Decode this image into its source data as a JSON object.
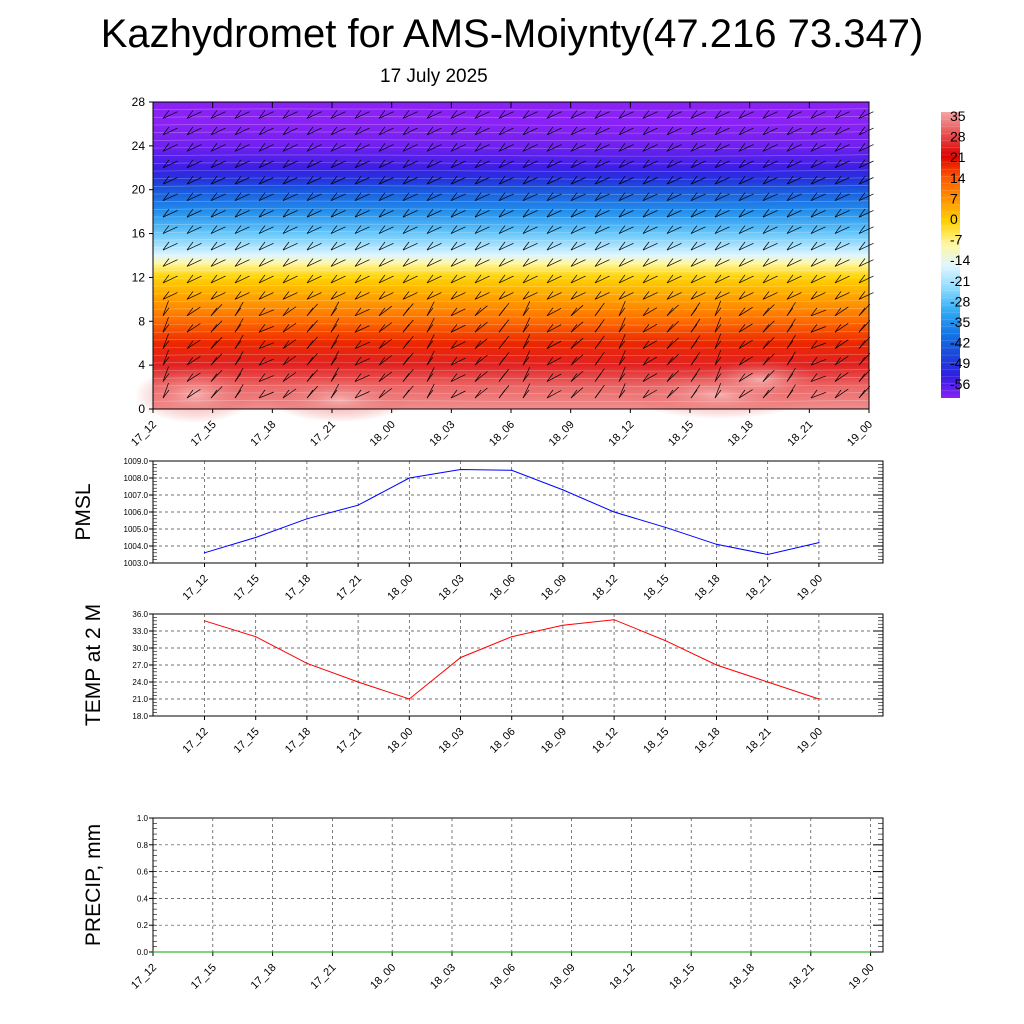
{
  "header": {
    "title": "Kazhydromet for AMS-Moiynty(47.216 73.347)",
    "date": "17 July 2025"
  },
  "chart_data": [
    {
      "type": "heatmap",
      "title": "",
      "xlabel": "",
      "ylabel": "",
      "x_ticks": [
        "17_12",
        "17_15",
        "17_18",
        "17_21",
        "18_00",
        "18_03",
        "18_06",
        "18_09",
        "18_12",
        "18_15",
        "18_18",
        "18_21",
        "19_00"
      ],
      "y_ticks": [
        0,
        4,
        8,
        12,
        16,
        20,
        24,
        28
      ],
      "ylim": [
        0,
        28
      ],
      "colorbar": {
        "labels": [
          35,
          28,
          21,
          14,
          7,
          0,
          -7,
          -14,
          -21,
          -28,
          -35,
          -42,
          -49,
          -56
        ],
        "colors": [
          "#f3a6a6",
          "#e85050",
          "#dd0000",
          "#ff5a00",
          "#ff9500",
          "#ffd200",
          "#fff7a0",
          "#dff6ff",
          "#8fdcff",
          "#34aef5",
          "#1579e6",
          "#1b49d8",
          "#2f1fe2",
          "#8a22f5"
        ]
      },
      "temperature_profile_C": {
        "heights": [
          0,
          2,
          4,
          6,
          8,
          10,
          12,
          13.3,
          14,
          16,
          18,
          20,
          21,
          22,
          24,
          26,
          28
        ],
        "values": [
          33,
          30,
          24,
          18,
          12,
          6,
          0,
          -7,
          -14,
          -24,
          -32,
          -40,
          -46,
          -50,
          -54,
          -56,
          -56
        ]
      }
    },
    {
      "type": "line",
      "ylabel": "PMSL",
      "categories": [
        "17_12",
        "17_15",
        "17_18",
        "17_21",
        "18_00",
        "18_03",
        "18_06",
        "18_09",
        "18_12",
        "18_15",
        "18_18",
        "18_21",
        "19_00"
      ],
      "series": [
        {
          "color": "#0000ff",
          "values": [
            1003.6,
            1004.5,
            1005.6,
            1006.4,
            1008.0,
            1008.5,
            1008.45,
            1007.3,
            1006.0,
            1005.1,
            1004.1,
            1003.5,
            1004.2
          ]
        }
      ],
      "ylim": [
        1003.0,
        1009.0
      ],
      "yticks": [
        "1003.0",
        "1004.0",
        "1005.0",
        "1006.0",
        "1007.0",
        "1008.0",
        "1009.0"
      ]
    },
    {
      "type": "line",
      "ylabel": "TEMP at 2 M",
      "categories": [
        "17_12",
        "17_15",
        "17_18",
        "17_21",
        "18_00",
        "18_03",
        "18_06",
        "18_09",
        "18_12",
        "18_15",
        "18_18",
        "18_21",
        "19_00"
      ],
      "series": [
        {
          "color": "#ff0000",
          "values": [
            34.8,
            32.0,
            27.3,
            24.0,
            21.0,
            28.3,
            32.0,
            34.0,
            35.0,
            31.3,
            27.0,
            24.0,
            21.0
          ]
        }
      ],
      "ylim": [
        18.0,
        36.0
      ],
      "yticks": [
        "18.0",
        "21.0",
        "24.0",
        "27.0",
        "30.0",
        "33.0",
        "36.0"
      ]
    },
    {
      "type": "line",
      "ylabel": "PRECIP, mm",
      "categories": [
        "17_12",
        "17_15",
        "17_18",
        "17_21",
        "18_00",
        "18_03",
        "18_06",
        "18_09",
        "18_12",
        "18_15",
        "18_18",
        "18_21",
        "19_00"
      ],
      "series": [
        {
          "color": "#00aa00",
          "values": [
            0,
            0,
            0,
            0,
            0,
            0,
            0,
            0,
            0,
            0,
            0,
            0,
            0
          ]
        }
      ],
      "ylim": [
        0.0,
        1.0
      ],
      "yticks": [
        "0.0",
        "0.2",
        "0.4",
        "0.6",
        "0.8",
        "1.0"
      ]
    }
  ]
}
